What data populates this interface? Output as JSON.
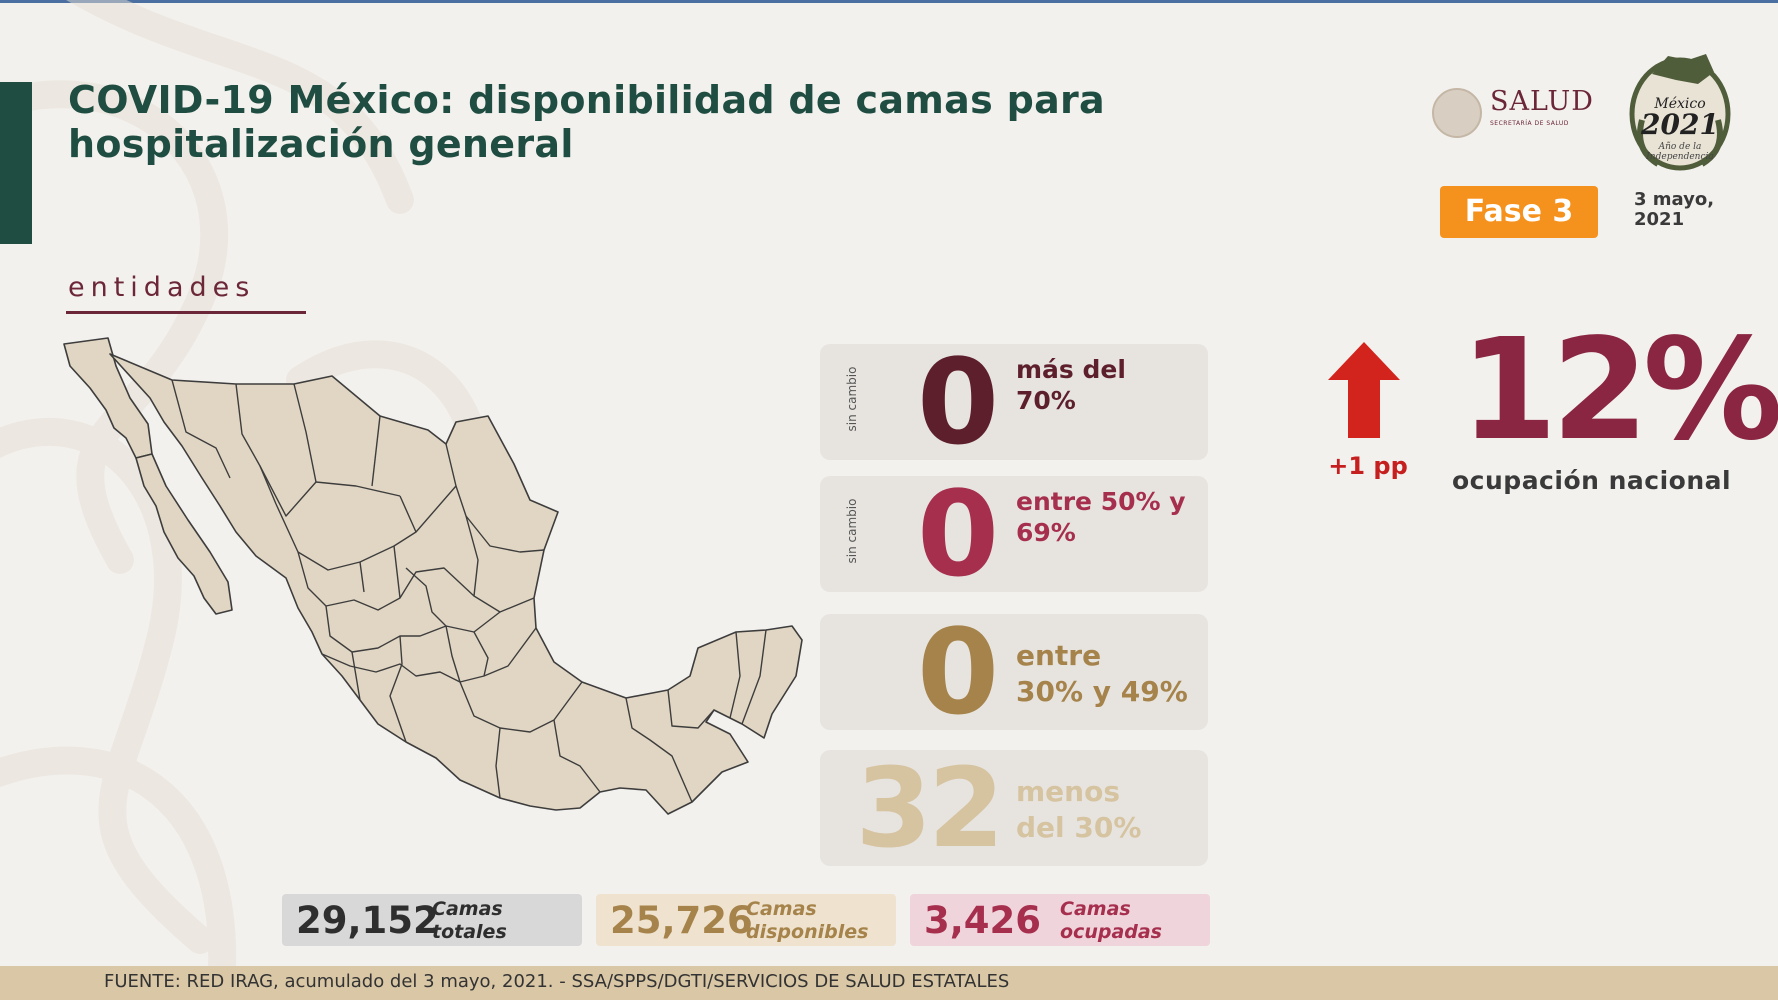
{
  "title_line1": "COVID-19 México: disponibilidad de camas para",
  "title_line2": "hospitalización general",
  "section_label": "entidades",
  "logos": {
    "salud_text": "SALUD",
    "salud_sub": "SECRETARÍA DE SALUD",
    "emblem_line1": "México",
    "emblem_line2": "2021",
    "emblem_line3": "Año de la Independencia"
  },
  "phase": "Fase 3",
  "date_line1": "3 mayo,",
  "date_line2": "2021",
  "categories": [
    {
      "count": "0",
      "change_label": "sin cambio",
      "label_line1": "más del",
      "label_line2": "70%",
      "color": "#5e1f2c"
    },
    {
      "count": "0",
      "change_label": "sin cambio",
      "label_line1": "entre 50% y",
      "label_line2": "69%",
      "color": "#a62f4e"
    },
    {
      "count": "0",
      "change_label": "",
      "label_line1": "entre",
      "label_line2": "30% y 49%",
      "color": "#a5834a"
    },
    {
      "count": "32",
      "change_label": "",
      "label_line1": "menos",
      "label_line2": "del 30%",
      "color": "#d6c3a0"
    }
  ],
  "national": {
    "trend_icon": "up-arrow-icon",
    "change": "+1 pp",
    "occupancy": "12%",
    "occupancy_label": "ocupación nacional",
    "arrow_color": "#d2231c",
    "pct_color": "#8a2642"
  },
  "summary": [
    {
      "value": "29,152",
      "label_line1": "Camas",
      "label_line2": "totales",
      "bg": "#d8d8d8",
      "color": "#2e2e2e"
    },
    {
      "value": "25,726",
      "label_line1": "Camas",
      "label_line2": "disponibles",
      "bg": "#efe3cf",
      "color": "#a5834a"
    },
    {
      "value": "3,426",
      "label_line1": "Camas",
      "label_line2": "ocupadas",
      "bg": "#efd4dc",
      "color": "#a62f4e"
    }
  ],
  "source": "FUENTE: RED IRAG, acumulado del 3 mayo, 2021. -  SSA/SPPS/DGTI/SERVICIOS DE SALUD ESTATALES",
  "map": {
    "fill": "#e1d6c3",
    "stroke": "#3d3d3d"
  }
}
